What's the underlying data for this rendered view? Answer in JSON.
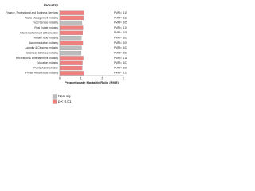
{
  "chart_data": {
    "type": "hbar",
    "title": "Industry",
    "x_label": "Proportionate Mortality Ratio (PMR)",
    "categories": [
      "Finance, Professional and Business Services",
      "Waste Management Industry",
      "Food Service Industry",
      "Real Estate Industry",
      "Arts, Entertainment & Recreation",
      "Retail Trade Industry",
      "Accommodation Industry",
      "Laundry & Cleaning Industry",
      "Business Services Industry",
      "Recreation & Entertainment Industry",
      "Education Industry",
      "Public Administration",
      "Private Households Industry"
    ],
    "values": [
      1.15,
      1.12,
      1.05,
      1.1,
      1.08,
      1.02,
      1.09,
      1.03,
      1.01,
      1.11,
      1.07,
      1.06,
      1.13
    ],
    "value_labels": [
      "PMR = 1.15",
      "PMR = 1.12",
      "PMR = 1.05",
      "PMR = 1.10",
      "PMR = 1.08",
      "PMR = 1.02",
      "PMR = 1.09",
      "PMR = 1.03",
      "PMR = 1.01",
      "PMR = 1.11",
      "PMR = 1.07",
      "PMR = 1.06",
      "PMR = 1.13"
    ],
    "significance": [
      1,
      1,
      0,
      1,
      1,
      0,
      1,
      0,
      0,
      1,
      1,
      1,
      1
    ],
    "legend": [
      {
        "name": "Non-sig",
        "color": "#bdbdbd"
      },
      {
        "name": "p < 0.01",
        "color": "#f08080"
      }
    ],
    "xlim": [
      0,
      3
    ],
    "xticks": [
      0,
      1,
      2,
      3
    ]
  }
}
